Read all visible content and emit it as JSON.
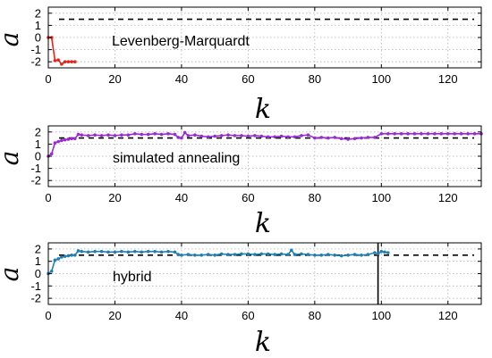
{
  "chart_data": [
    {
      "type": "line",
      "annotation": "Levenberg-Marquardt",
      "xlabel": "k",
      "ylabel": "a",
      "xlim": [
        0,
        130
      ],
      "ylim": [
        -2.5,
        2.5
      ],
      "xticks": [
        0,
        20,
        40,
        60,
        80,
        100,
        120
      ],
      "yticks": [
        2,
        1,
        0,
        -1,
        -2
      ],
      "reference_line": 1.5,
      "grid": true,
      "color": "#e8251c",
      "series": [
        {
          "x": [
            0,
            1,
            2,
            3,
            4,
            5,
            6,
            7,
            8
          ],
          "y": [
            0,
            0,
            -1.9,
            -1.85,
            -2.2,
            -2.0,
            -2.0,
            -2.0,
            -2.0
          ]
        }
      ]
    },
    {
      "type": "line",
      "annotation": "simulated annealing",
      "xlabel": "k",
      "ylabel": "a",
      "xlim": [
        0,
        130
      ],
      "ylim": [
        -2.5,
        2.5
      ],
      "xticks": [
        0,
        20,
        40,
        60,
        80,
        100,
        120
      ],
      "yticks": [
        2,
        1,
        0,
        -1,
        -2
      ],
      "reference_line": 1.5,
      "grid": true,
      "color": "#9b2ad6",
      "series": [
        {
          "x": [
            0,
            1,
            2,
            3,
            4,
            5,
            6,
            7,
            8,
            9,
            10,
            12,
            14,
            16,
            18,
            20,
            22,
            24,
            26,
            28,
            30,
            32,
            34,
            36,
            38,
            39,
            40,
            41,
            42,
            44,
            46,
            48,
            50,
            52,
            54,
            56,
            58,
            60,
            62,
            64,
            66,
            68,
            70,
            72,
            74,
            76,
            78,
            80,
            82,
            84,
            86,
            88,
            90,
            92,
            94,
            96,
            98,
            100,
            102,
            104,
            106,
            108,
            110,
            112,
            114,
            116,
            118,
            120,
            122,
            124,
            126,
            128,
            130
          ],
          "y": [
            0,
            0.2,
            1.1,
            1.2,
            1.3,
            1.35,
            1.4,
            1.45,
            1.45,
            1.8,
            1.75,
            1.7,
            1.75,
            1.7,
            1.75,
            1.7,
            1.75,
            1.75,
            1.85,
            1.8,
            1.8,
            1.85,
            1.8,
            1.85,
            1.8,
            1.55,
            1.5,
            1.95,
            1.7,
            1.75,
            1.65,
            1.6,
            1.65,
            1.7,
            1.75,
            1.7,
            1.7,
            1.65,
            1.7,
            1.65,
            1.6,
            1.6,
            1.65,
            1.6,
            1.6,
            1.7,
            1.75,
            1.5,
            1.55,
            1.5,
            1.55,
            1.45,
            1.4,
            1.45,
            1.5,
            1.55,
            1.55,
            1.85,
            1.85,
            1.85,
            1.85,
            1.85,
            1.85,
            1.85,
            1.85,
            1.85,
            1.85,
            1.85,
            1.85,
            1.85,
            1.85,
            1.85,
            1.85
          ]
        }
      ]
    },
    {
      "type": "line",
      "annotation": "hybrid",
      "xlabel": "k",
      "ylabel": "a",
      "xlim": [
        0,
        130
      ],
      "ylim": [
        -2.5,
        2.5
      ],
      "xticks": [
        0,
        20,
        40,
        60,
        80,
        100,
        120
      ],
      "yticks": [
        2,
        1,
        0,
        -1,
        -2
      ],
      "reference_line": 1.5,
      "vertical_marker": 99,
      "grid": true,
      "color": "#1f7fb4",
      "series": [
        {
          "x": [
            0,
            1,
            2,
            3,
            4,
            5,
            6,
            7,
            8,
            9,
            10,
            12,
            14,
            16,
            18,
            20,
            22,
            24,
            26,
            28,
            30,
            32,
            34,
            36,
            38,
            39,
            40,
            42,
            44,
            46,
            48,
            50,
            52,
            54,
            56,
            58,
            60,
            62,
            64,
            66,
            68,
            70,
            72,
            73,
            74,
            76,
            78,
            80,
            82,
            84,
            86,
            88,
            90,
            92,
            94,
            96,
            98,
            99,
            100,
            101,
            102
          ],
          "y": [
            0,
            0.2,
            1.1,
            1.2,
            1.35,
            1.4,
            1.45,
            1.5,
            1.5,
            1.85,
            1.8,
            1.75,
            1.8,
            1.8,
            1.75,
            1.75,
            1.8,
            1.75,
            1.8,
            1.75,
            1.8,
            1.8,
            1.75,
            1.8,
            1.75,
            1.55,
            1.5,
            1.55,
            1.5,
            1.5,
            1.55,
            1.5,
            1.6,
            1.55,
            1.55,
            1.6,
            1.6,
            1.55,
            1.6,
            1.6,
            1.55,
            1.6,
            1.55,
            1.9,
            1.55,
            1.6,
            1.55,
            1.5,
            1.5,
            1.55,
            1.5,
            1.45,
            1.5,
            1.55,
            1.5,
            1.55,
            1.7,
            1.6,
            1.8,
            1.75,
            1.7
          ]
        }
      ]
    }
  ]
}
